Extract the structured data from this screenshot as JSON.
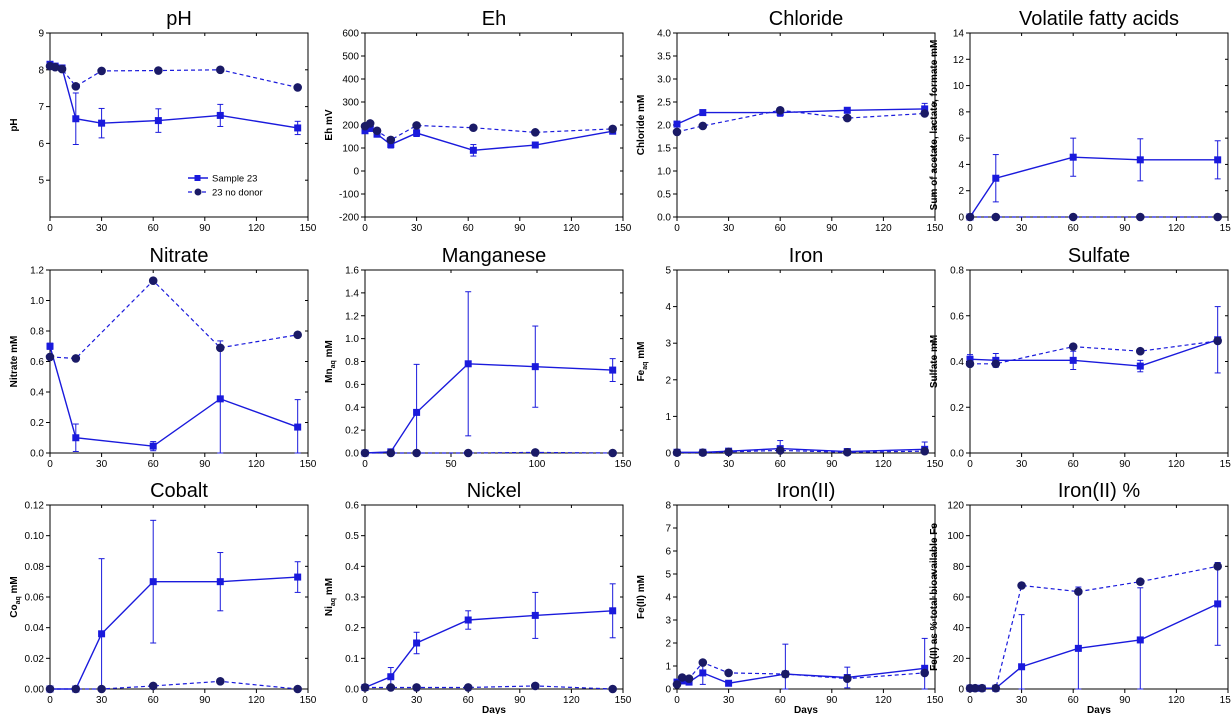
{
  "figure": {
    "legend": {
      "series": [
        "Sample 23",
        "23 no donor"
      ]
    }
  },
  "styles": {
    "line_color": "#1a1adc",
    "axis_color": "#000000"
  },
  "chart_data": [
    {
      "type": "line",
      "title": "pH",
      "ylabel": "pH",
      "xlabel": "",
      "xlim": [
        0,
        150
      ],
      "ylim": [
        4,
        9
      ],
      "xticks": [
        0,
        30,
        60,
        90,
        120,
        150
      ],
      "yticks": [
        5,
        6,
        7,
        8,
        9
      ],
      "legend": "inside-right",
      "series": [
        {
          "name": "Sample 23",
          "style": "solid-square",
          "x": [
            0,
            3,
            7,
            15,
            30,
            63,
            99,
            144
          ],
          "y": [
            8.15,
            8.1,
            8.05,
            6.67,
            6.55,
            6.62,
            6.76,
            6.42
          ],
          "err": [
            0.05,
            0.05,
            0.05,
            0.7,
            0.4,
            0.32,
            0.3,
            0.18
          ]
        },
        {
          "name": "23 no donor",
          "style": "dashed-circle",
          "x": [
            0,
            3,
            7,
            15,
            30,
            63,
            99,
            144
          ],
          "y": [
            8.1,
            8.07,
            8.02,
            7.55,
            7.97,
            7.98,
            8.0,
            7.52
          ]
        }
      ]
    },
    {
      "type": "line",
      "title": "Eh",
      "ylabel": "Eh mV",
      "xlabel": "",
      "xlim": [
        0,
        150
      ],
      "ylim": [
        -200,
        600
      ],
      "xticks": [
        0,
        30,
        60,
        90,
        120,
        150
      ],
      "yticks": [
        -200,
        -100,
        0,
        100,
        200,
        300,
        400,
        500,
        600
      ],
      "series": [
        {
          "name": "Sample 23",
          "style": "solid-square",
          "x": [
            0,
            3,
            7,
            15,
            30,
            63,
            99,
            144
          ],
          "y": [
            175,
            185,
            160,
            115,
            165,
            90,
            113,
            173
          ],
          "err": [
            10,
            10,
            10,
            15,
            15,
            25,
            10,
            10
          ]
        },
        {
          "name": "23 no donor",
          "style": "dashed-circle",
          "x": [
            0,
            3,
            7,
            15,
            30,
            63,
            99,
            144
          ],
          "y": [
            195,
            207,
            175,
            135,
            198,
            188,
            168,
            183
          ]
        }
      ]
    },
    {
      "type": "line",
      "title": "Chloride",
      "ylabel": "Chloride mM",
      "xlabel": "",
      "xlim": [
        0,
        150
      ],
      "ylim": [
        0,
        4
      ],
      "xticks": [
        0,
        30,
        60,
        90,
        120,
        150
      ],
      "yticks": [
        0.0,
        0.5,
        1.0,
        1.5,
        2.0,
        2.5,
        3.0,
        3.5,
        4.0
      ],
      "series": [
        {
          "name": "Sample 23",
          "style": "solid-square",
          "x": [
            0,
            15,
            60,
            99,
            144
          ],
          "y": [
            2.02,
            2.27,
            2.27,
            2.32,
            2.35
          ],
          "err": [
            0.05,
            0.05,
            0.08,
            0.06,
            0.12
          ]
        },
        {
          "name": "23 no donor",
          "style": "dashed-circle",
          "x": [
            0,
            15,
            60,
            99,
            144
          ],
          "y": [
            1.85,
            1.98,
            2.32,
            2.15,
            2.25
          ]
        }
      ]
    },
    {
      "type": "line",
      "title": "Volatile fatty acids",
      "ylabel": "Sum of acetate, lactate, formate mM",
      "xlabel": "",
      "xlim": [
        0,
        150
      ],
      "ylim": [
        0,
        14
      ],
      "xticks": [
        0,
        30,
        60,
        90,
        120,
        150
      ],
      "yticks": [
        0,
        2,
        4,
        6,
        8,
        10,
        12,
        14
      ],
      "series": [
        {
          "name": "Sample 23",
          "style": "solid-square",
          "x": [
            0,
            15,
            60,
            99,
            144
          ],
          "y": [
            0,
            2.95,
            4.55,
            4.35,
            4.35
          ],
          "err": [
            0,
            1.8,
            1.45,
            1.6,
            1.45
          ]
        },
        {
          "name": "23 no donor",
          "style": "dashed-circle",
          "x": [
            0,
            15,
            60,
            99,
            144
          ],
          "y": [
            0,
            0,
            0,
            0,
            0
          ]
        }
      ]
    },
    {
      "type": "line",
      "title": "Nitrate",
      "ylabel": "Nitrate mM",
      "xlabel": "",
      "xlim": [
        0,
        150
      ],
      "ylim": [
        0,
        1.2
      ],
      "xticks": [
        0,
        30,
        60,
        90,
        120,
        150
      ],
      "yticks": [
        0.0,
        0.2,
        0.4,
        0.6,
        0.8,
        1.0,
        1.2
      ],
      "series": [
        {
          "name": "Sample 23",
          "style": "solid-square",
          "x": [
            0,
            15,
            60,
            99,
            144
          ],
          "y": [
            0.7,
            0.1,
            0.045,
            0.355,
            0.17
          ],
          "err": [
            0.02,
            0.09,
            0.03,
            0.38,
            0.18
          ]
        },
        {
          "name": "23 no donor",
          "style": "dashed-circle",
          "x": [
            0,
            15,
            60,
            99,
            144
          ],
          "y": [
            0.63,
            0.62,
            1.13,
            0.69,
            0.775
          ]
        }
      ]
    },
    {
      "type": "line",
      "title": "Manganese",
      "ylabel": "Mn_aq mM",
      "xlabel": "",
      "xlim": [
        0,
        150
      ],
      "ylim": [
        0,
        1.6
      ],
      "xticks": [
        0,
        50,
        100,
        150
      ],
      "yticks": [
        0.0,
        0.2,
        0.4,
        0.6,
        0.8,
        1.0,
        1.2,
        1.4,
        1.6
      ],
      "series": [
        {
          "name": "Sample 23",
          "style": "solid-square",
          "x": [
            0,
            15,
            30,
            60,
            99,
            144
          ],
          "y": [
            0,
            0.01,
            0.355,
            0.78,
            0.755,
            0.725
          ],
          "err": [
            0,
            0.01,
            0.42,
            0.63,
            0.355,
            0.1
          ]
        },
        {
          "name": "23 no donor",
          "style": "dashed-circle",
          "x": [
            0,
            15,
            30,
            60,
            99,
            144
          ],
          "y": [
            0,
            0,
            0,
            0,
            0.005,
            0
          ]
        }
      ]
    },
    {
      "type": "line",
      "title": "Iron",
      "ylabel": "Fe_aq mM",
      "xlabel": "",
      "xlim": [
        0,
        150
      ],
      "ylim": [
        0,
        5
      ],
      "xticks": [
        0,
        30,
        60,
        90,
        120,
        150
      ],
      "yticks": [
        0,
        1,
        2,
        3,
        4,
        5
      ],
      "series": [
        {
          "name": "Sample 23",
          "style": "solid-square",
          "x": [
            0,
            15,
            30,
            60,
            99,
            144
          ],
          "y": [
            0.02,
            0.02,
            0.05,
            0.12,
            0.04,
            0.1
          ],
          "err": [
            0,
            0.02,
            0.05,
            0.22,
            0.06,
            0.2
          ]
        },
        {
          "name": "23 no donor",
          "style": "dashed-circle",
          "x": [
            0,
            15,
            30,
            60,
            99,
            144
          ],
          "y": [
            0.01,
            0.01,
            0.03,
            0.07,
            0.02,
            0.05
          ]
        }
      ]
    },
    {
      "type": "line",
      "title": "Sulfate",
      "ylabel": "Sulfate mM",
      "xlabel": "",
      "xlim": [
        0,
        150
      ],
      "ylim": [
        0,
        0.8
      ],
      "xticks": [
        0,
        30,
        60,
        90,
        120,
        150
      ],
      "yticks": [
        0.0,
        0.2,
        0.4,
        0.6,
        0.8
      ],
      "series": [
        {
          "name": "Sample 23",
          "style": "solid-square",
          "x": [
            0,
            15,
            60,
            99,
            144
          ],
          "y": [
            0.41,
            0.405,
            0.405,
            0.38,
            0.495
          ],
          "err": [
            0.02,
            0.03,
            0.04,
            0.025,
            0.145
          ]
        },
        {
          "name": "23 no donor",
          "style": "dashed-circle",
          "x": [
            0,
            15,
            60,
            99,
            144
          ],
          "y": [
            0.39,
            0.39,
            0.465,
            0.445,
            0.49
          ]
        }
      ]
    },
    {
      "type": "line",
      "title": "Cobalt",
      "ylabel": "Co_aq mM",
      "xlabel": "",
      "xlim": [
        0,
        150
      ],
      "ylim": [
        0,
        0.12
      ],
      "xticks": [
        0,
        30,
        60,
        90,
        120,
        150
      ],
      "yticks": [
        0.0,
        0.02,
        0.04,
        0.06,
        0.08,
        0.1,
        0.12
      ],
      "ytick_labels": [
        "0.00",
        "0.02",
        "0.04",
        "0.06",
        "0.08",
        "0.10",
        "0.12"
      ],
      "series": [
        {
          "name": "Sample 23",
          "style": "solid-square",
          "x": [
            0,
            15,
            30,
            60,
            99,
            144
          ],
          "y": [
            0,
            0,
            0.036,
            0.07,
            0.07,
            0.073
          ],
          "err": [
            0,
            0,
            0.049,
            0.04,
            0.019,
            0.01
          ]
        },
        {
          "name": "23 no donor",
          "style": "dashed-circle",
          "x": [
            0,
            15,
            30,
            60,
            99,
            144
          ],
          "y": [
            0,
            0,
            0,
            0.002,
            0.005,
            0
          ]
        }
      ]
    },
    {
      "type": "line",
      "title": "Nickel",
      "ylabel": "Ni_aq mM",
      "xlabel": "Days",
      "xlim": [
        0,
        150
      ],
      "ylim": [
        0,
        0.6
      ],
      "xticks": [
        0,
        30,
        60,
        90,
        120,
        150
      ],
      "yticks": [
        0.0,
        0.1,
        0.2,
        0.3,
        0.4,
        0.5,
        0.6
      ],
      "series": [
        {
          "name": "Sample 23",
          "style": "solid-square",
          "x": [
            0,
            15,
            30,
            60,
            99,
            144
          ],
          "y": [
            0.005,
            0.04,
            0.15,
            0.225,
            0.24,
            0.255
          ],
          "err": [
            0,
            0.03,
            0.035,
            0.03,
            0.075,
            0.088
          ]
        },
        {
          "name": "23 no donor",
          "style": "dashed-circle",
          "x": [
            0,
            15,
            30,
            60,
            99,
            144
          ],
          "y": [
            0.005,
            0.005,
            0.005,
            0.005,
            0.01,
            0
          ]
        }
      ]
    },
    {
      "type": "line",
      "title": "Iron(II)",
      "ylabel": "Fe(II) mM",
      "xlabel": "Days",
      "xlim": [
        0,
        150
      ],
      "ylim": [
        0,
        8
      ],
      "xticks": [
        0,
        30,
        60,
        90,
        120,
        150
      ],
      "yticks": [
        0,
        1,
        2,
        3,
        4,
        5,
        6,
        7,
        8
      ],
      "series": [
        {
          "name": "Sample 23",
          "style": "solid-square",
          "x": [
            0,
            3,
            7,
            15,
            30,
            63,
            99,
            144
          ],
          "y": [
            0.3,
            0.35,
            0.3,
            0.7,
            0.25,
            0.65,
            0.5,
            0.9
          ],
          "err": [
            0.05,
            0.1,
            0.1,
            0.5,
            0.1,
            1.3,
            0.45,
            1.3
          ]
        },
        {
          "name": "23 no donor",
          "style": "dashed-circle",
          "x": [
            0,
            3,
            7,
            15,
            30,
            63,
            99,
            144
          ],
          "y": [
            0.2,
            0.5,
            0.45,
            1.15,
            0.7,
            0.65,
            0.45,
            0.7
          ]
        }
      ]
    },
    {
      "type": "line",
      "title": "Iron(II) %",
      "ylabel": "Fe(II) as % total bioavailable Fe",
      "xlabel": "Days",
      "xlim": [
        0,
        150
      ],
      "ylim": [
        0,
        120
      ],
      "xticks": [
        0,
        30,
        60,
        90,
        120,
        150
      ],
      "yticks": [
        0,
        20,
        40,
        60,
        80,
        100,
        120
      ],
      "series": [
        {
          "name": "Sample 23",
          "style": "solid-square",
          "x": [
            0,
            3,
            7,
            15,
            30,
            63,
            99,
            144
          ],
          "y": [
            0.5,
            0.5,
            0.5,
            0.5,
            14.5,
            26.5,
            32,
            55.5
          ],
          "err": [
            0,
            0,
            0,
            0,
            34,
            40,
            34,
            27
          ]
        },
        {
          "name": "23 no donor",
          "style": "dashed-circle",
          "x": [
            0,
            3,
            7,
            15,
            30,
            63,
            99,
            144
          ],
          "y": [
            0.5,
            0.5,
            0.5,
            0.5,
            67.5,
            63.5,
            70,
            80
          ]
        }
      ]
    }
  ]
}
